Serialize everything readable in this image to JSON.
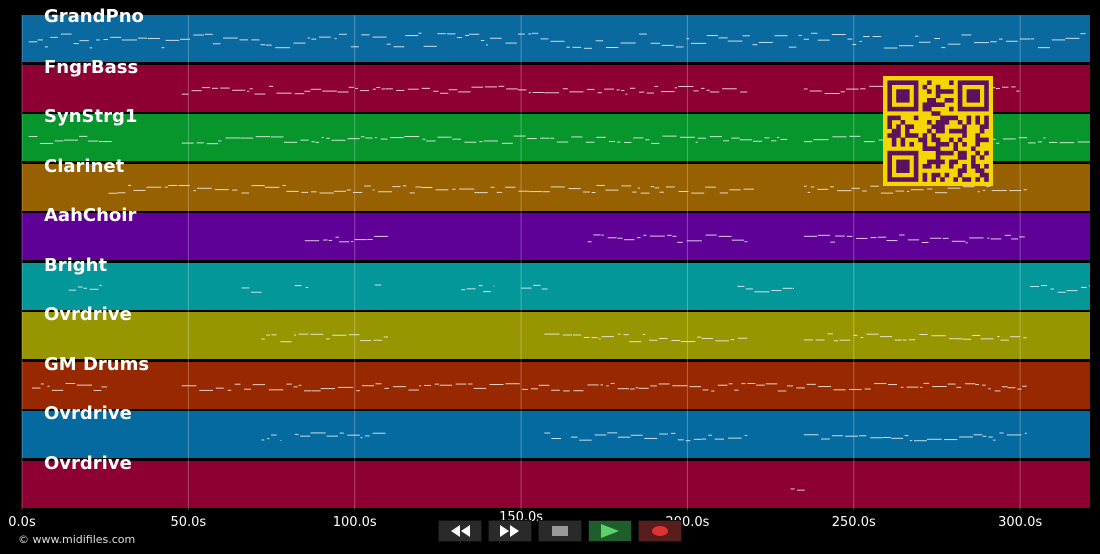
{
  "tracks": [
    {
      "name": "GrandPno",
      "color": "#0a6aa0"
    },
    {
      "name": "FngrBass",
      "color": "#8e0034"
    },
    {
      "name": "SynStrg1",
      "color": "#06962c"
    },
    {
      "name": "Clarinet",
      "color": "#976000"
    },
    {
      "name": "AahChoir",
      "color": "#5f0096"
    },
    {
      "name": "Bright",
      "color": "#04979a"
    },
    {
      "name": "Ovrdrive",
      "color": "#979600"
    },
    {
      "name": "GM Drums",
      "color": "#972800"
    },
    {
      "name": "Ovrdrive",
      "color": "#056aa0"
    },
    {
      "name": "Ovrdrive",
      "color": "#8e0034"
    }
  ],
  "timeline": {
    "ticks": [
      "0.0s",
      "50.0s",
      "100.0s",
      "150.0s",
      "200.0s",
      "250.0s",
      "300.0s"
    ],
    "tick_values": [
      0,
      50,
      100,
      150,
      200,
      250,
      300
    ],
    "max_seconds": 321
  },
  "copyright": "© www.midifiles.com",
  "controls": [
    {
      "name": "rewind-button",
      "icon": "rewind-icon"
    },
    {
      "name": "fast-forward-button",
      "icon": "fast-forward-icon"
    },
    {
      "name": "stop-button",
      "icon": "stop-icon"
    },
    {
      "name": "play-button",
      "icon": "play-icon"
    },
    {
      "name": "record-button",
      "icon": "record-icon"
    }
  ],
  "colors": {
    "background": "#000000",
    "note": "#f0f0f0",
    "qr_fg": "#5a1160",
    "qr_bg": "#f5d600"
  }
}
